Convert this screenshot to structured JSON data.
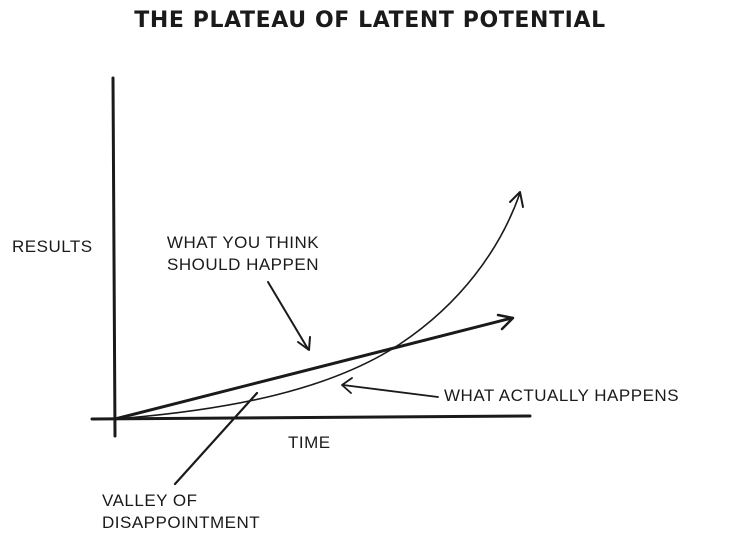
{
  "title": "THE PLATEAU OF LATENT POTENTIAL",
  "axes": {
    "y_label": "RESULTS",
    "x_label": "TIME"
  },
  "annotations": {
    "expected_line1": "WHAT YOU THINK",
    "expected_line2": "SHOULD HAPPEN",
    "actual": "WHAT ACTUALLY HAPPENS",
    "valley_line1": "VALLEY OF",
    "valley_line2": "DISAPPOINTMENT"
  },
  "colors": {
    "ink": "#1a1a1a",
    "background": "#ffffff"
  }
}
